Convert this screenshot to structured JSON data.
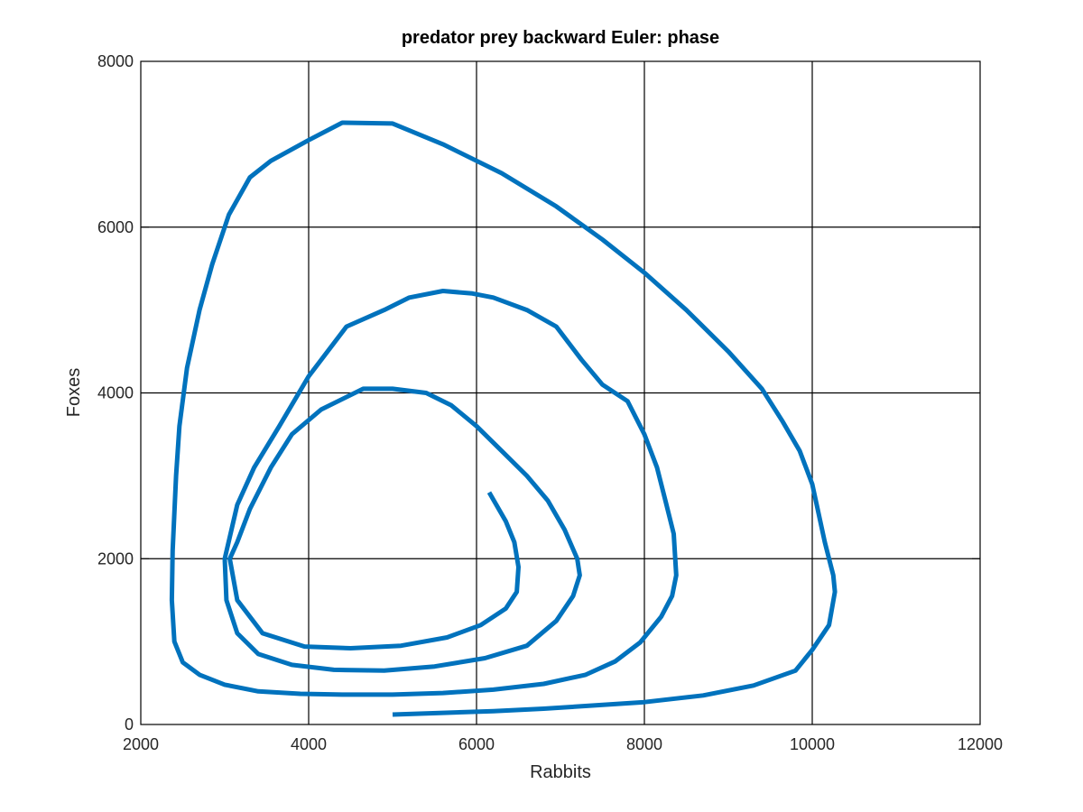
{
  "chart_data": {
    "type": "line",
    "title": "predator prey backward Euler: phase",
    "xlabel": "Rabbits",
    "ylabel": "Foxes",
    "xlim": [
      2000,
      12000
    ],
    "ylim": [
      0,
      8000
    ],
    "xticks": [
      2000,
      4000,
      6000,
      8000,
      10000,
      12000
    ],
    "yticks": [
      0,
      2000,
      4000,
      6000,
      8000
    ],
    "grid": true,
    "series_color": "#0072BD",
    "series": [
      {
        "x": [
          5000,
          5600,
          6200,
          6800,
          7400,
          8000,
          8700,
          9300,
          9800,
          10000,
          10200,
          10270,
          10250,
          10200,
          10150,
          10000,
          9850,
          9650,
          9400,
          9000,
          8500,
          8000,
          7500,
          6950,
          6300,
          5600,
          5000,
          4400,
          4000,
          3550,
          3300,
          3050,
          2850,
          2700,
          2550,
          2460,
          2420,
          2380,
          2370,
          2400,
          2500,
          2700,
          3000,
          3400,
          3900,
          4400,
          5000,
          5600,
          6200,
          6800,
          7300,
          7650,
          7950,
          8200,
          8330,
          8380,
          8350,
          8250,
          8150,
          8000,
          7800,
          7500,
          7250,
          6950,
          6600,
          6200,
          5950,
          5600,
          5200,
          4900,
          4450,
          4000,
          3650,
          3350,
          3150,
          3000,
          3020,
          3150,
          3400,
          3800,
          4300,
          4900,
          5500,
          6100,
          6600,
          6950,
          7150,
          7230,
          7200,
          7050,
          6850,
          6600,
          6300,
          6000,
          5700,
          5400,
          5000,
          4650,
          4150,
          3800,
          3550,
          3300,
          3150,
          3060,
          3150,
          3450,
          3950,
          4500,
          5100,
          5650,
          6050,
          6350,
          6480,
          6500,
          6450,
          6350,
          6150
        ],
        "y": [
          120,
          140,
          160,
          190,
          230,
          270,
          350,
          470,
          650,
          900,
          1200,
          1600,
          1800,
          2000,
          2200,
          2900,
          3300,
          3650,
          4050,
          4500,
          5000,
          5450,
          5850,
          6250,
          6650,
          7000,
          7250,
          7260,
          7050,
          6800,
          6600,
          6150,
          5550,
          5000,
          4300,
          3600,
          3000,
          2100,
          1500,
          1000,
          750,
          600,
          480,
          400,
          370,
          360,
          360,
          380,
          420,
          490,
          600,
          760,
          990,
          1300,
          1550,
          1800,
          2300,
          2700,
          3100,
          3500,
          3900,
          4100,
          4400,
          4800,
          5000,
          5150,
          5200,
          5230,
          5150,
          5000,
          4800,
          4200,
          3600,
          3100,
          2650,
          2000,
          1500,
          1100,
          850,
          720,
          660,
          650,
          700,
          800,
          950,
          1250,
          1550,
          1800,
          2000,
          2350,
          2700,
          3000,
          3300,
          3600,
          3850,
          4000,
          4050,
          4050,
          3800,
          3500,
          3100,
          2600,
          2200,
          2000,
          1500,
          1100,
          940,
          920,
          950,
          1050,
          1200,
          1400,
          1600,
          1900,
          2200,
          2450,
          2800
        ]
      }
    ]
  }
}
